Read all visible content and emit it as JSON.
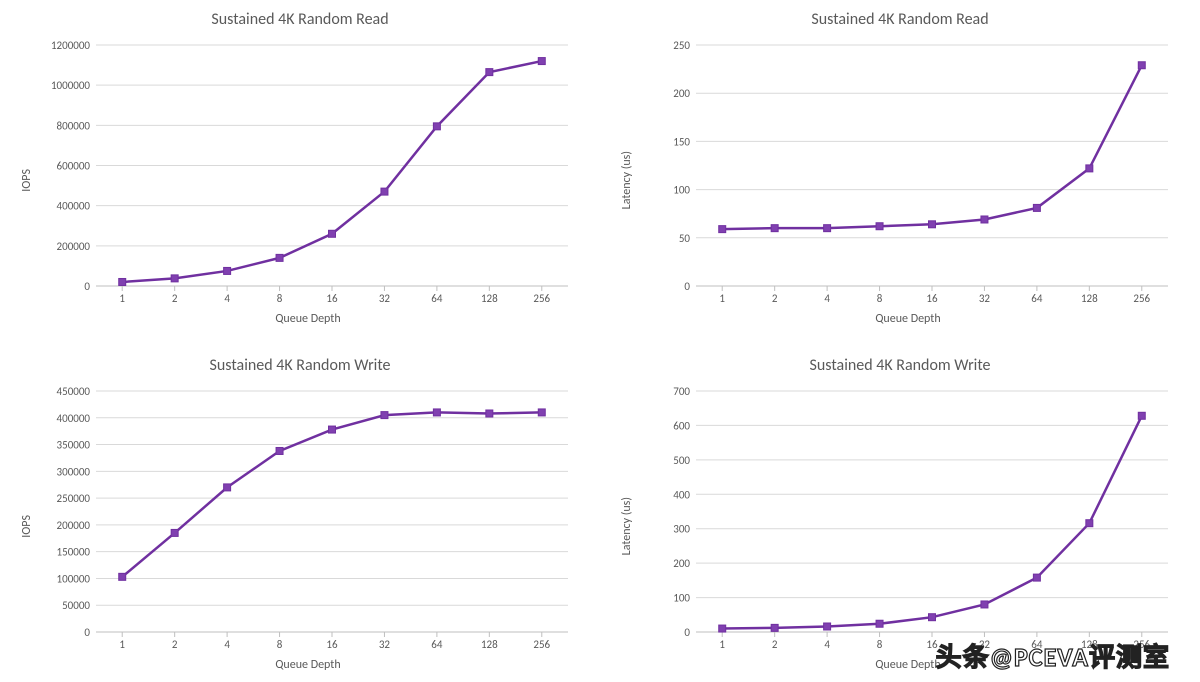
{
  "global": {
    "series_color": "#7030a0",
    "marker_color": "#8040b0",
    "line_width": 2.5,
    "marker_size": 7,
    "axis_color": "#bfbfbf",
    "grid_color": "#d9d9d9",
    "tick_color": "#595959",
    "text_color": "#595959",
    "background_color": "#ffffff",
    "title_fontsize": 16,
    "label_fontsize": 12,
    "tick_fontsize": 11,
    "font_family": "Calibri"
  },
  "watermark": "头条@PCEVA评测室",
  "charts": [
    {
      "id": "read-iops",
      "title": "Sustained 4K Random Read",
      "type": "line",
      "xlabel": "Queue Depth",
      "ylabel": "IOPS",
      "categories": [
        "1",
        "2",
        "4",
        "8",
        "16",
        "32",
        "64",
        "128",
        "256"
      ],
      "values": [
        20000,
        38000,
        75000,
        140000,
        260000,
        470000,
        795000,
        1065000,
        1120000
      ],
      "ylim": [
        0,
        1200000
      ],
      "ytick_step": 200000
    },
    {
      "id": "read-latency",
      "title": "Sustained 4K Random Read",
      "type": "line",
      "xlabel": "Queue Depth",
      "ylabel": "Latency (us)",
      "categories": [
        "1",
        "2",
        "4",
        "8",
        "16",
        "32",
        "64",
        "128",
        "256"
      ],
      "values": [
        59,
        60,
        60,
        62,
        64,
        69,
        81,
        122,
        229
      ],
      "ylim": [
        0,
        250
      ],
      "ytick_step": 50
    },
    {
      "id": "write-iops",
      "title": "Sustained 4K Random Write",
      "type": "line",
      "xlabel": "Queue Depth",
      "ylabel": "IOPS",
      "categories": [
        "1",
        "2",
        "4",
        "8",
        "16",
        "32",
        "64",
        "128",
        "256"
      ],
      "values": [
        103000,
        185000,
        270000,
        338000,
        378000,
        405000,
        410000,
        408000,
        410000
      ],
      "ylim": [
        0,
        450000
      ],
      "ytick_step": 50000
    },
    {
      "id": "write-latency",
      "title": "Sustained 4K Random Write",
      "type": "line",
      "xlabel": "Queue Depth",
      "ylabel": "Latency (us)",
      "categories": [
        "1",
        "2",
        "4",
        "8",
        "16",
        "32",
        "64",
        "128",
        "256"
      ],
      "values": [
        10,
        12,
        16,
        24,
        43,
        80,
        158,
        316,
        628
      ],
      "ylim": [
        0,
        700
      ],
      "ytick_step": 100
    }
  ]
}
